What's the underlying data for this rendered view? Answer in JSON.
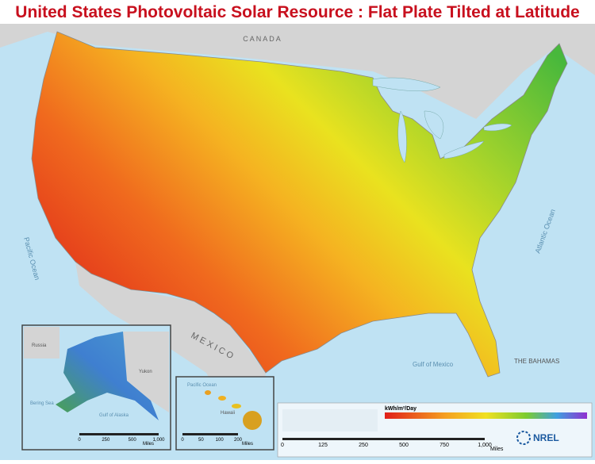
{
  "header": {
    "title": "United States Photovoltaic Solar Resource : Flat Plate Tilted at Latitude"
  },
  "labels": {
    "canada": "C A N A D A",
    "mexico": "M E X I C O",
    "pacific": "Pacific Ocean",
    "atlantic": "Atlantic Ocean",
    "gulf": "Gulf of Mexico",
    "bahamas": "THE BAHAMAS"
  },
  "alaska_inset": {
    "labels": {
      "russia": "Russia",
      "yukon": "Yukon",
      "bering": "Bering Sea",
      "gulf": "Gulf of Alaska"
    },
    "scale": [
      "0",
      "250",
      "500",
      "1,000"
    ],
    "unit": "Miles"
  },
  "hawaii_inset": {
    "labels": {
      "ocean": "Pacific Ocean",
      "hawaii": "Hawaii"
    },
    "scale": [
      "0",
      "50",
      "100",
      "200"
    ],
    "unit": "Miles"
  },
  "main_scale": {
    "ticks": [
      "0",
      "125",
      "250",
      "500",
      "750",
      "1,000"
    ],
    "unit": "Miles"
  },
  "legend": {
    "title": "kWh/m²/Day"
  },
  "logo": "NREL"
}
